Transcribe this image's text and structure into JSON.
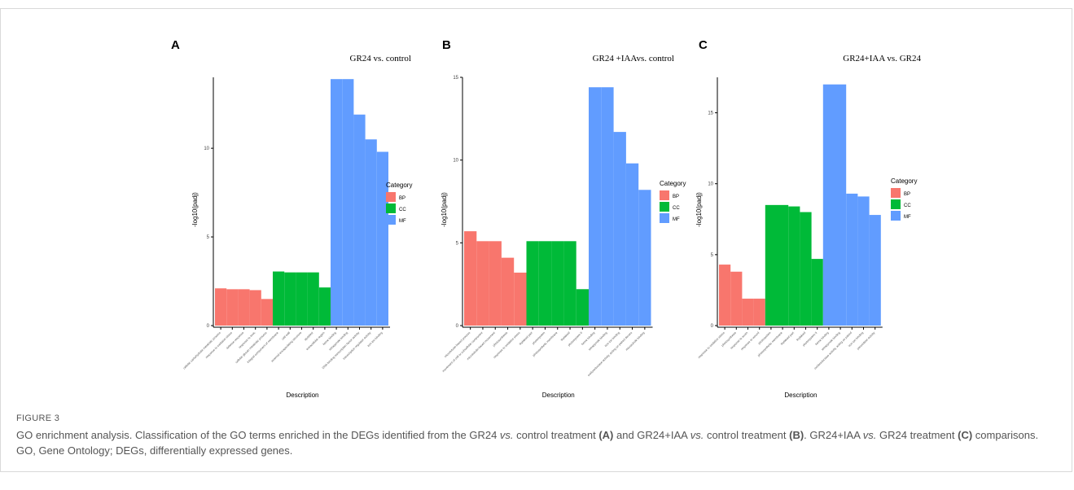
{
  "caption": {
    "figure_label": "FIGURE 3",
    "segments": [
      {
        "text": "GO enrichment analysis. Classification of the GO terms enriched in the DEGs identified from the GR24 ",
        "style": "normal"
      },
      {
        "text": "vs.",
        "style": "italic"
      },
      {
        "text": " control treatment ",
        "style": "normal"
      },
      {
        "text": "(A)",
        "style": "bold"
      },
      {
        "text": " and GR24+IAA ",
        "style": "normal"
      },
      {
        "text": "vs.",
        "style": "italic"
      },
      {
        "text": " control treatment ",
        "style": "normal"
      },
      {
        "text": "(B)",
        "style": "bold"
      },
      {
        "text": ". GR24+IAA ",
        "style": "normal"
      },
      {
        "text": "vs.",
        "style": "italic"
      },
      {
        "text": " GR24 treatment ",
        "style": "normal"
      },
      {
        "text": "(C)",
        "style": "bold"
      },
      {
        "text": " comparisons. GO, Gene Ontology; DEGs, differentially expressed genes.",
        "style": "normal"
      }
    ]
  },
  "colors": {
    "BP": "#f8766d",
    "CC": "#00ba38",
    "MF": "#619cff"
  },
  "chart_data": [
    {
      "type": "bar",
      "panel": "A",
      "title": "GR24 vs. control",
      "xlabel": "Description",
      "ylabel": "-log10(padj)",
      "ylim": [
        0,
        14
      ],
      "yticks": [
        0,
        5,
        10
      ],
      "legend": {
        "title": "Category",
        "entries": [
          "BP",
          "CC",
          "MF"
        ],
        "position": "right"
      },
      "categories": [
        "cellular carbohydrate metabolic process",
        "response to oxidative stress",
        "defense response",
        "response to toxic",
        "cellular glucan metabolic process",
        "integral component of membrane",
        "cell wall",
        "external encapsulating structure",
        "apoplast",
        "extracellular region",
        "heme binding",
        "tetrapyrrole binding",
        "DNA-binding transcription factor activity",
        "transcription regulator activity",
        "iron ion binding"
      ],
      "groups": [
        "BP",
        "BP",
        "BP",
        "BP",
        "BP",
        "CC",
        "CC",
        "CC",
        "CC",
        "CC",
        "MF",
        "MF",
        "MF",
        "MF",
        "MF"
      ],
      "values": [
        2.1,
        2.05,
        2.05,
        2.0,
        1.5,
        3.05,
        3.0,
        3.0,
        3.0,
        2.15,
        13.9,
        13.9,
        11.9,
        10.5,
        9.8
      ]
    },
    {
      "type": "bar",
      "panel": "B",
      "title": "GR24 +IAAvs. control",
      "xlabel": "Description",
      "ylabel": "-log10(padj)",
      "ylim": [
        0,
        15
      ],
      "yticks": [
        0,
        5,
        10,
        15
      ],
      "legend": {
        "title": "Category",
        "entries": [
          "BP",
          "CC",
          "MF"
        ],
        "position": "right"
      },
      "categories": [
        "microtubule-based process",
        "movement of cell or subcellular component",
        "microtubule-based movement",
        "photosynthesis",
        "response to oxidative stress",
        "thylakoid part",
        "photosystem",
        "photosynthetic membrane",
        "thylakoid",
        "photosystem II",
        "heme binding",
        "tetrapyrrole binding",
        "iron ion binding",
        "oxidoreductase activity, acting on paired donors",
        "microtubule binding"
      ],
      "groups": [
        "BP",
        "BP",
        "BP",
        "BP",
        "BP",
        "CC",
        "CC",
        "CC",
        "CC",
        "CC",
        "MF",
        "MF",
        "MF",
        "MF",
        "MF"
      ],
      "values": [
        5.7,
        5.1,
        5.1,
        4.1,
        3.2,
        5.1,
        5.1,
        5.1,
        5.1,
        2.2,
        14.4,
        14.4,
        11.7,
        9.8,
        8.2
      ]
    },
    {
      "type": "bar",
      "panel": "C",
      "title": "GR24+IAA vs. GR24",
      "xlabel": "Description",
      "ylabel": "-log10(padj)",
      "ylim": [
        0,
        17.5
      ],
      "yticks": [
        0,
        5,
        10,
        15
      ],
      "legend": {
        "title": "Category",
        "entries": [
          "BP",
          "CC",
          "MF"
        ],
        "position": "right"
      },
      "categories": [
        "response to oxidative stress",
        "photosynthesis",
        "response to auxin",
        "response to wound",
        "photosystem",
        "photosynthetic membrane",
        "thylakoid part",
        "thylakoid",
        "photosystem II",
        "heme binding",
        "tetrapyrrole binding",
        "oxidoreductase activity, acting on paired",
        "iron ion binding",
        "peroxidase activity"
      ],
      "groups": [
        "BP",
        "BP",
        "BP",
        "BP",
        "CC",
        "CC",
        "CC",
        "CC",
        "CC",
        "MF",
        "MF",
        "MF",
        "MF",
        "MF"
      ],
      "values": [
        4.3,
        3.8,
        1.9,
        1.9,
        8.5,
        8.5,
        8.4,
        8.0,
        4.7,
        17.0,
        17.0,
        9.3,
        9.1,
        7.8
      ]
    }
  ]
}
